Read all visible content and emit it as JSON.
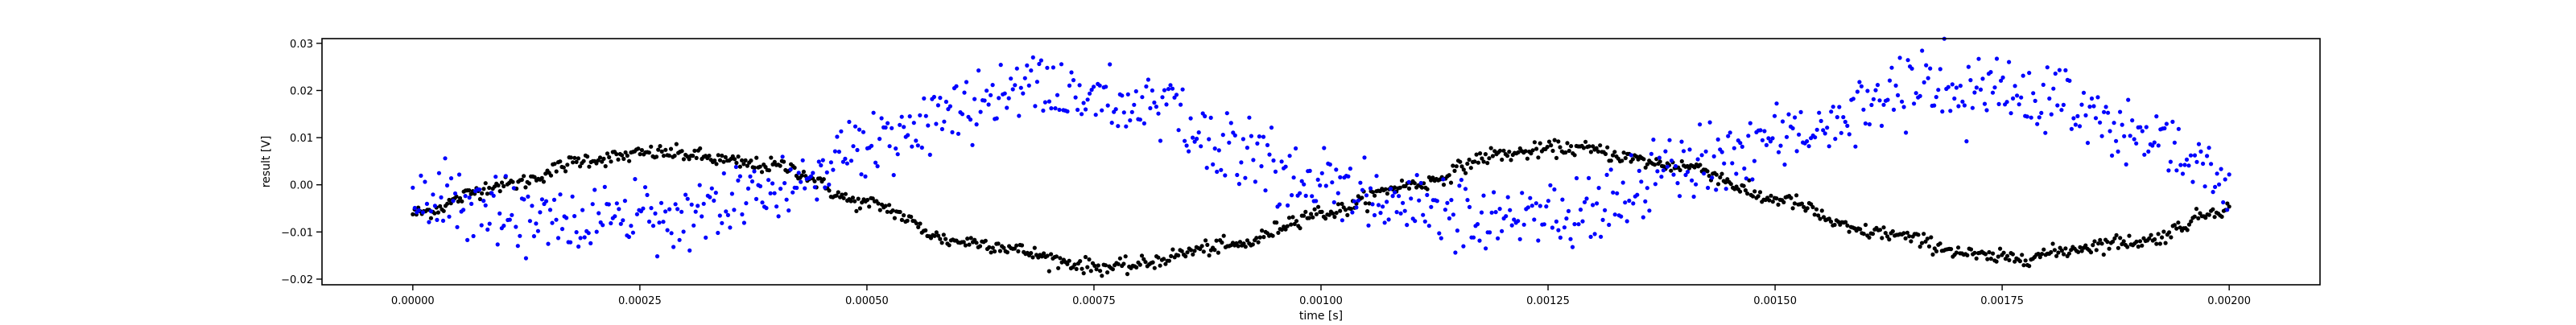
{
  "chart_data": {
    "type": "scatter",
    "xlabel": "time [s]",
    "ylabel": "result [V]",
    "xlim": [
      -0.0001,
      0.0021
    ],
    "ylim": [
      -0.0212,
      0.031
    ],
    "x_ticks": [
      0.0,
      0.00025,
      0.0005,
      0.00075,
      0.001,
      0.00125,
      0.0015,
      0.00175,
      0.002
    ],
    "x_tick_labels": [
      "0.00000",
      "0.00025",
      "0.00050",
      "0.00075",
      "0.00100",
      "0.00125",
      "0.00150",
      "0.00175",
      "0.00200"
    ],
    "y_ticks": [
      -0.02,
      -0.01,
      0.0,
      0.01,
      0.02,
      0.03
    ],
    "y_tick_labels": [
      "−0.02",
      "−0.01",
      "0.00",
      "0.01",
      "0.02",
      "0.03"
    ],
    "grid": false,
    "series": [
      {
        "color": "#000000",
        "description": "smooth sinusoid, period 0.001 s",
        "x_range": [
          0.0,
          0.002
        ],
        "n_points": 1000,
        "samples": [
          [
            0.0,
            -0.006
          ],
          [
            0.0001,
            0.0
          ],
          [
            0.0002,
            0.0055
          ],
          [
            0.00027,
            0.0068
          ],
          [
            0.0004,
            0.004
          ],
          [
            0.0005,
            -0.004
          ],
          [
            0.0006,
            -0.012
          ],
          [
            0.00077,
            -0.0175
          ],
          [
            0.0009,
            -0.013
          ],
          [
            0.001,
            -0.006
          ],
          [
            0.0011,
            0.0
          ],
          [
            0.0012,
            0.0065
          ],
          [
            0.00127,
            0.0078
          ],
          [
            0.0014,
            0.004
          ],
          [
            0.0015,
            -0.003
          ],
          [
            0.0016,
            -0.01
          ],
          [
            0.00175,
            -0.0155
          ],
          [
            0.0019,
            -0.012
          ],
          [
            0.002,
            -0.005
          ]
        ],
        "noise": 0.0008
      },
      {
        "color": "#0000ff",
        "description": "noisy two-branch sinusoid, period 0.001 s",
        "x_range": [
          0.0,
          0.002
        ],
        "n_points": 900,
        "samples": [
          [
            0.0,
            -0.003
          ],
          [
            0.00015,
            -0.009
          ],
          [
            0.0003,
            -0.007
          ],
          [
            0.0004,
            0.0
          ],
          [
            0.0005,
            0.008
          ],
          [
            0.00068,
            0.021
          ],
          [
            0.0008,
            0.017
          ],
          [
            0.0009,
            0.008
          ],
          [
            0.001,
            0.0
          ],
          [
            0.0011,
            -0.005
          ],
          [
            0.00125,
            -0.008
          ],
          [
            0.0014,
            0.003
          ],
          [
            0.0015,
            0.01
          ],
          [
            0.00168,
            0.022
          ],
          [
            0.0018,
            0.018
          ],
          [
            0.0019,
            0.01
          ],
          [
            0.002,
            0.001
          ]
        ],
        "branch_split": 0.0055,
        "noise": 0.0025
      }
    ]
  }
}
